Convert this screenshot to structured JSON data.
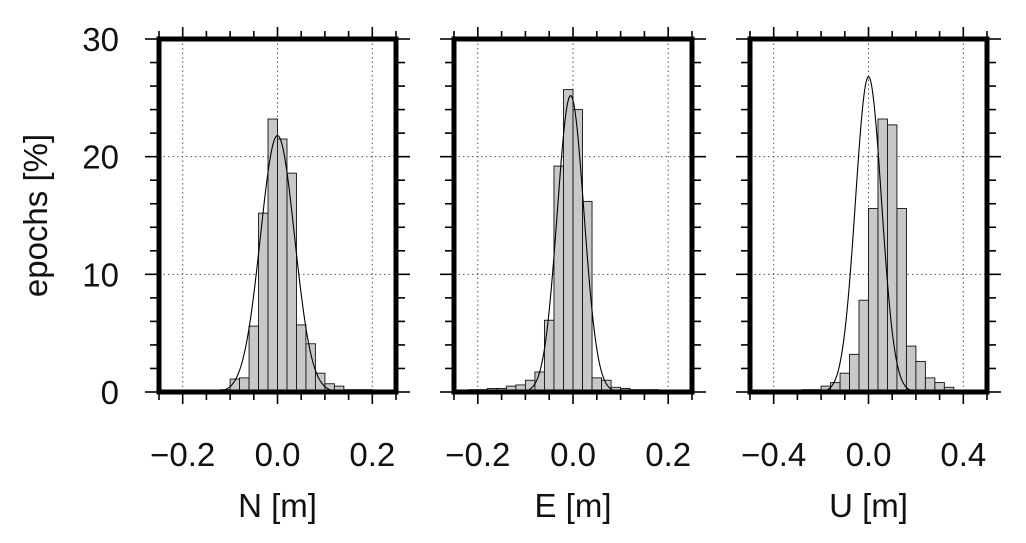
{
  "chart_data": [
    {
      "type": "histogram",
      "xlabel": "N [m]",
      "ylabel": "epochs [%]",
      "xlim": [
        -0.25,
        0.25
      ],
      "ylim": [
        0,
        30
      ],
      "xticks": [
        -0.2,
        0.0,
        0.2
      ],
      "xtick_labels": [
        "−0.2",
        "0.0",
        "0.2"
      ],
      "yticks": [
        0,
        10,
        20,
        30
      ],
      "ytick_labels": [
        "0",
        "10",
        "20",
        "30"
      ],
      "grid": true,
      "bin_edges": [
        -0.12,
        -0.1,
        -0.08,
        -0.06,
        -0.04,
        -0.02,
        0.0,
        0.02,
        0.04,
        0.06,
        0.08,
        0.1,
        0.12,
        0.14,
        0.16,
        0.18,
        0.2,
        0.22,
        0.24
      ],
      "values": [
        0.2,
        1.1,
        1.2,
        5.6,
        15.2,
        23.2,
        21.5,
        18.6,
        5.7,
        4.1,
        1.6,
        0.7,
        0.5,
        0.2,
        0.2,
        0.2,
        0.1,
        0.1
      ],
      "fit": {
        "type": "gaussian",
        "mean": 0.0,
        "peak": 21.8,
        "sigma": 0.036
      },
      "bar_color": "#c8c8c8"
    },
    {
      "type": "histogram",
      "xlabel": "E [m]",
      "xlim": [
        -0.25,
        0.25
      ],
      "ylim": [
        0,
        30
      ],
      "xticks": [
        -0.2,
        0.0,
        0.2
      ],
      "xtick_labels": [
        "−0.2",
        "0.0",
        "0.2"
      ],
      "grid": true,
      "bin_edges": [
        -0.24,
        -0.22,
        -0.2,
        -0.18,
        -0.16,
        -0.14,
        -0.12,
        -0.1,
        -0.08,
        -0.06,
        -0.04,
        -0.02,
        0.0,
        0.02,
        0.04,
        0.06,
        0.08,
        0.1,
        0.12,
        0.14,
        0.16,
        0.18,
        0.2
      ],
      "values": [
        0.1,
        0.2,
        0.2,
        0.3,
        0.3,
        0.5,
        0.6,
        1.0,
        1.7,
        6.1,
        19.2,
        25.7,
        24.0,
        16.2,
        1.2,
        1.0,
        0.4,
        0.3,
        0.2,
        0.2,
        0.2,
        0.1
      ],
      "fit": {
        "type": "gaussian",
        "mean": -0.005,
        "peak": 25.2,
        "sigma": 0.028
      },
      "bar_color": "#c8c8c8"
    },
    {
      "type": "histogram",
      "xlabel": "U [m]",
      "xlim": [
        -0.5,
        0.5
      ],
      "ylim": [
        0,
        30
      ],
      "xticks": [
        -0.4,
        0.0,
        0.4
      ],
      "xtick_labels": [
        "−0.4",
        "0.0",
        "0.4"
      ],
      "grid": true,
      "bin_edges": [
        -0.36,
        -0.32,
        -0.28,
        -0.24,
        -0.2,
        -0.16,
        -0.12,
        -0.08,
        -0.04,
        0.0,
        0.04,
        0.08,
        0.12,
        0.16,
        0.2,
        0.24,
        0.28,
        0.32,
        0.36
      ],
      "values": [
        0.1,
        0.1,
        0.2,
        0.2,
        0.5,
        0.8,
        1.6,
        3.2,
        7.8,
        15.6,
        23.2,
        22.7,
        15.6,
        3.9,
        2.6,
        1.2,
        0.8,
        0.4
      ],
      "fit": {
        "type": "gaussian",
        "mean": 0.0,
        "peak": 26.8,
        "sigma": 0.055
      },
      "bar_color": "#c8c8c8"
    }
  ]
}
